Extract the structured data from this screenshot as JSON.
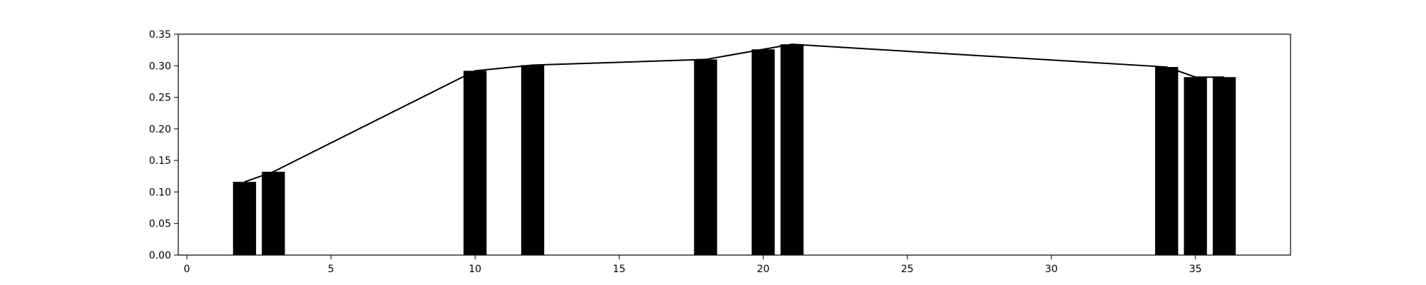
{
  "chart_data": {
    "type": "bar",
    "title": "",
    "xlabel": "",
    "ylabel": "",
    "xlim": [
      -0.3,
      38.3
    ],
    "ylim": [
      0,
      0.35
    ],
    "grid": false,
    "bar_width": 0.8,
    "bar_color": "#000000",
    "line_color": "#000000",
    "x": [
      2,
      3,
      10,
      12,
      18,
      20,
      21,
      34,
      35,
      36
    ],
    "values": [
      0.116,
      0.132,
      0.292,
      0.301,
      0.31,
      0.326,
      0.334,
      0.298,
      0.282,
      0.282
    ],
    "x_ticks": [
      0,
      5,
      10,
      15,
      20,
      25,
      30,
      35
    ],
    "x_tick_labels": [
      "0",
      "5",
      "10",
      "15",
      "20",
      "25",
      "30",
      "35"
    ],
    "y_ticks": [
      0,
      0.05,
      0.1,
      0.15,
      0.2,
      0.25,
      0.3,
      0.35
    ],
    "y_tick_labels": [
      "0.00",
      "0.05",
      "0.10",
      "0.15",
      "0.20",
      "0.25",
      "0.30",
      "0.35"
    ]
  }
}
